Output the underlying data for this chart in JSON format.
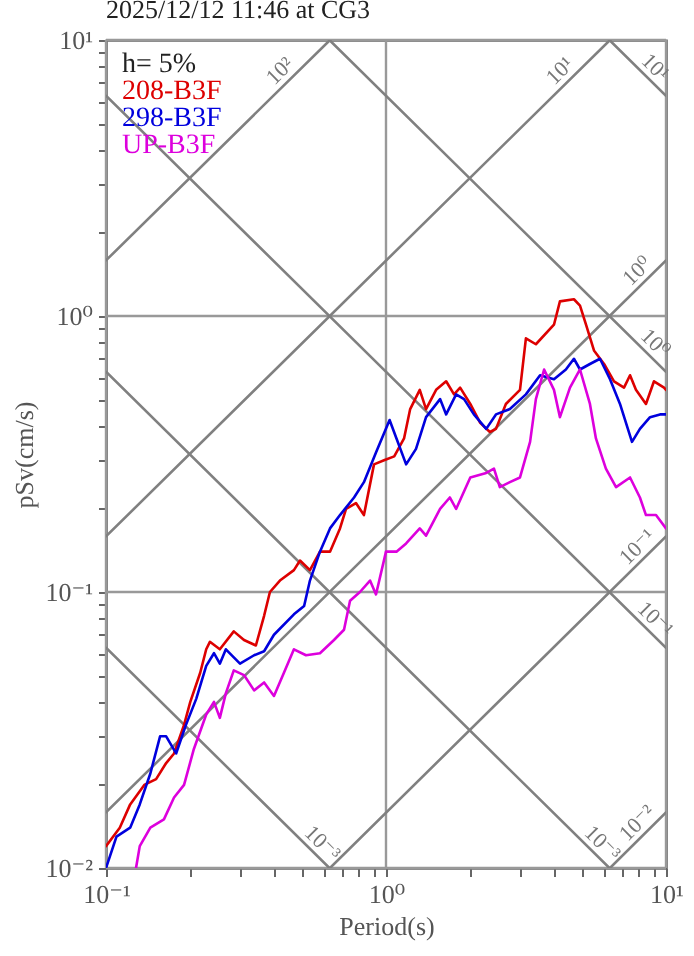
{
  "chart_data": {
    "type": "line",
    "title": "2025/12/12 11:46 at CG3",
    "xlabel": "Period(s)",
    "ylabel": "pSv(cm/s)",
    "log": "xy",
    "grid": true,
    "legend": "top left",
    "line_style": "solid",
    "marker": "none",
    "xlim": [
      0.1,
      10
    ],
    "ylim": [
      0.01,
      10
    ],
    "xticks": [
      {
        "value": 0.1,
        "label": "10⁻¹"
      },
      {
        "value": 0.2,
        "label": null
      },
      {
        "value": 0.3,
        "label": null
      },
      {
        "value": 0.4,
        "label": null
      },
      {
        "value": 0.5,
        "label": null
      },
      {
        "value": 0.6,
        "label": null
      },
      {
        "value": 0.7,
        "label": null
      },
      {
        "value": 0.8,
        "label": null
      },
      {
        "value": 0.9,
        "label": null
      },
      {
        "value": 1,
        "label": "10⁰"
      },
      {
        "value": 2,
        "label": null
      },
      {
        "value": 3,
        "label": null
      },
      {
        "value": 4,
        "label": null
      },
      {
        "value": 5,
        "label": null
      },
      {
        "value": 6,
        "label": null
      },
      {
        "value": 7,
        "label": null
      },
      {
        "value": 8,
        "label": null
      },
      {
        "value": 9,
        "label": null
      },
      {
        "value": 10,
        "label": "10¹"
      }
    ],
    "yticks": [
      {
        "value": 0.01,
        "label": "10⁻²"
      },
      {
        "value": 0.02,
        "label": null
      },
      {
        "value": 0.03,
        "label": null
      },
      {
        "value": 0.04,
        "label": null
      },
      {
        "value": 0.05,
        "label": null
      },
      {
        "value": 0.06,
        "label": null
      },
      {
        "value": 0.07,
        "label": null
      },
      {
        "value": 0.08,
        "label": null
      },
      {
        "value": 0.09,
        "label": null
      },
      {
        "value": 0.1,
        "label": "10⁻¹"
      },
      {
        "value": 0.2,
        "label": null
      },
      {
        "value": 0.3,
        "label": null
      },
      {
        "value": 0.4,
        "label": null
      },
      {
        "value": 0.5,
        "label": null
      },
      {
        "value": 0.6,
        "label": null
      },
      {
        "value": 0.7,
        "label": null
      },
      {
        "value": 0.8,
        "label": null
      },
      {
        "value": 0.9,
        "label": null
      },
      {
        "value": 1,
        "label": "10⁰"
      },
      {
        "value": 2,
        "label": null
      },
      {
        "value": 3,
        "label": null
      },
      {
        "value": 4,
        "label": null
      },
      {
        "value": 5,
        "label": null
      },
      {
        "value": 6,
        "label": null
      },
      {
        "value": 7,
        "label": null
      },
      {
        "value": 8,
        "label": null
      },
      {
        "value": 9,
        "label": null
      },
      {
        "value": 10,
        "label": "10¹"
      }
    ],
    "series": [
      {
        "color": "#808080",
        "x": [
          0.1,
          0.631
        ],
        "values": [
          1.59,
          10
        ]
      },
      {
        "color": "#808080",
        "x": [
          0.1,
          6.31
        ],
        "values": [
          0.159,
          10
        ]
      },
      {
        "color": "#808080",
        "x": [
          0.1,
          10
        ],
        "values": [
          0.0159,
          1.59
        ]
      },
      {
        "color": "#808080",
        "x": [
          0.631,
          10
        ],
        "values": [
          0.01,
          0.159
        ]
      },
      {
        "color": "#808080",
        "x": [
          6.31,
          10
        ],
        "values": [
          0.01,
          0.0159
        ]
      },
      {
        "color": "#808080",
        "x": [
          6.28,
          10
        ],
        "values": [
          10,
          6.28
        ]
      },
      {
        "color": "#808080",
        "x": [
          0.628,
          10
        ],
        "values": [
          10,
          0.628
        ]
      },
      {
        "color": "#808080",
        "x": [
          0.1,
          10
        ],
        "values": [
          6.28,
          0.0628
        ]
      },
      {
        "color": "#808080",
        "x": [
          0.1,
          6.28
        ],
        "values": [
          0.628,
          0.01
        ]
      },
      {
        "color": "#808080",
        "x": [
          0.1,
          0.628
        ],
        "values": [
          0.0628,
          0.01
        ]
      },
      {
        "name": "208-B3F",
        "color": "#dd0000",
        "x": [
          0.1,
          0.112,
          0.122,
          0.137,
          0.151,
          0.164,
          0.175,
          0.19,
          0.2,
          0.217,
          0.228,
          0.235,
          0.255,
          0.286,
          0.311,
          0.343,
          0.367,
          0.385,
          0.418,
          0.469,
          0.493,
          0.535,
          0.581,
          0.631,
          0.685,
          0.72,
          0.781,
          0.834,
          0.906,
          0.984,
          1.07,
          1.16,
          1.22,
          1.32,
          1.39,
          1.51,
          1.64,
          1.75,
          1.84,
          2.0,
          2.17,
          2.35,
          2.47,
          2.68,
          3.01,
          3.16,
          3.43,
          3.98,
          4.18,
          4.69,
          4.93,
          5.18,
          5.53,
          6.01,
          6.52,
          7.08,
          7.44,
          7.81,
          8.48,
          9.06,
          9.84,
          10
        ],
        "values": [
          0.012,
          0.014,
          0.017,
          0.02,
          0.021,
          0.024,
          0.026,
          0.033,
          0.04,
          0.051,
          0.062,
          0.066,
          0.062,
          0.072,
          0.067,
          0.064,
          0.082,
          0.1,
          0.11,
          0.12,
          0.13,
          0.12,
          0.14,
          0.14,
          0.17,
          0.2,
          0.21,
          0.19,
          0.29,
          0.3,
          0.31,
          0.36,
          0.46,
          0.54,
          0.46,
          0.54,
          0.58,
          0.52,
          0.55,
          0.48,
          0.41,
          0.38,
          0.39,
          0.48,
          0.54,
          0.83,
          0.79,
          0.93,
          1.13,
          1.15,
          1.09,
          0.93,
          0.75,
          0.67,
          0.58,
          0.55,
          0.61,
          0.54,
          0.48,
          0.58,
          0.55,
          0.54
        ]
      },
      {
        "name": "298-B3F",
        "color": "#0000dd",
        "x": [
          0.1,
          0.109,
          0.122,
          0.132,
          0.144,
          0.156,
          0.164,
          0.178,
          0.193,
          0.21,
          0.228,
          0.243,
          0.255,
          0.268,
          0.301,
          0.338,
          0.367,
          0.398,
          0.469,
          0.51,
          0.535,
          0.581,
          0.631,
          0.685,
          0.769,
          0.834,
          0.921,
          1.03,
          1.09,
          1.18,
          1.28,
          1.39,
          1.56,
          1.64,
          1.78,
          1.9,
          2.06,
          2.28,
          2.47,
          2.77,
          3.16,
          3.55,
          3.98,
          4.39,
          4.69,
          4.93,
          5.35,
          5.81,
          6.31,
          6.85,
          7.56,
          8.07,
          8.77,
          9.52,
          10
        ],
        "values": [
          0.01,
          0.013,
          0.014,
          0.017,
          0.022,
          0.03,
          0.03,
          0.026,
          0.033,
          0.041,
          0.054,
          0.06,
          0.055,
          0.062,
          0.055,
          0.059,
          0.061,
          0.07,
          0.083,
          0.089,
          0.11,
          0.14,
          0.17,
          0.19,
          0.22,
          0.25,
          0.32,
          0.42,
          0.36,
          0.29,
          0.33,
          0.43,
          0.5,
          0.44,
          0.52,
          0.5,
          0.44,
          0.39,
          0.44,
          0.46,
          0.52,
          0.61,
          0.59,
          0.64,
          0.7,
          0.64,
          0.67,
          0.7,
          0.59,
          0.48,
          0.35,
          0.39,
          0.43,
          0.44,
          0.44
        ]
      },
      {
        "name": "UP-B3F",
        "color": "#dd00dd",
        "x": [
          0.128,
          0.132,
          0.144,
          0.161,
          0.175,
          0.19,
          0.206,
          0.228,
          0.243,
          0.255,
          0.268,
          0.286,
          0.311,
          0.338,
          0.367,
          0.398,
          0.432,
          0.469,
          0.518,
          0.581,
          0.652,
          0.708,
          0.744,
          0.807,
          0.877,
          0.921,
          1.0,
          1.03,
          1.09,
          1.18,
          1.32,
          1.39,
          1.56,
          1.69,
          1.78,
          2.0,
          2.28,
          2.43,
          2.55,
          2.77,
          3.01,
          3.27,
          3.43,
          3.67,
          3.98,
          4.18,
          4.54,
          4.93,
          5.35,
          5.62,
          6.1,
          6.63,
          7.44,
          8.07,
          8.48,
          9.21,
          10
        ],
        "values": [
          0.01,
          0.012,
          0.014,
          0.015,
          0.018,
          0.02,
          0.027,
          0.036,
          0.04,
          0.035,
          0.043,
          0.052,
          0.05,
          0.044,
          0.047,
          0.042,
          0.051,
          0.062,
          0.059,
          0.06,
          0.067,
          0.073,
          0.093,
          0.1,
          0.11,
          0.098,
          0.14,
          0.14,
          0.14,
          0.15,
          0.17,
          0.16,
          0.2,
          0.22,
          0.2,
          0.26,
          0.27,
          0.28,
          0.24,
          0.25,
          0.26,
          0.35,
          0.5,
          0.64,
          0.54,
          0.43,
          0.55,
          0.64,
          0.48,
          0.36,
          0.28,
          0.24,
          0.26,
          0.22,
          0.19,
          0.19,
          0.17
        ]
      }
    ],
    "annotations": [
      "h= 5%",
      {
        "text": "10²",
        "x": 0.45,
        "y": 7.16
      },
      {
        "text": "10¹",
        "x": 4.5,
        "y": 7.16
      },
      {
        "text": "10¹",
        "x": 8.5,
        "y": 7.39
      },
      {
        "text": "10⁰",
        "x": 8.5,
        "y": 1.35
      },
      {
        "text": "10⁰",
        "x": 8.5,
        "y": 0.739
      },
      {
        "text": "10⁻¹",
        "x": 8.5,
        "y": 0.135
      },
      {
        "text": "10⁻¹",
        "x": 8.5,
        "y": 0.0739
      },
      {
        "text": "10⁻³",
        "x": 5.5,
        "y": 0.0114
      },
      {
        "text": "10⁻²",
        "x": 8.5,
        "y": 0.0135
      },
      {
        "text": "10⁻³",
        "x": 0.55,
        "y": 0.0114
      }
    ]
  }
}
